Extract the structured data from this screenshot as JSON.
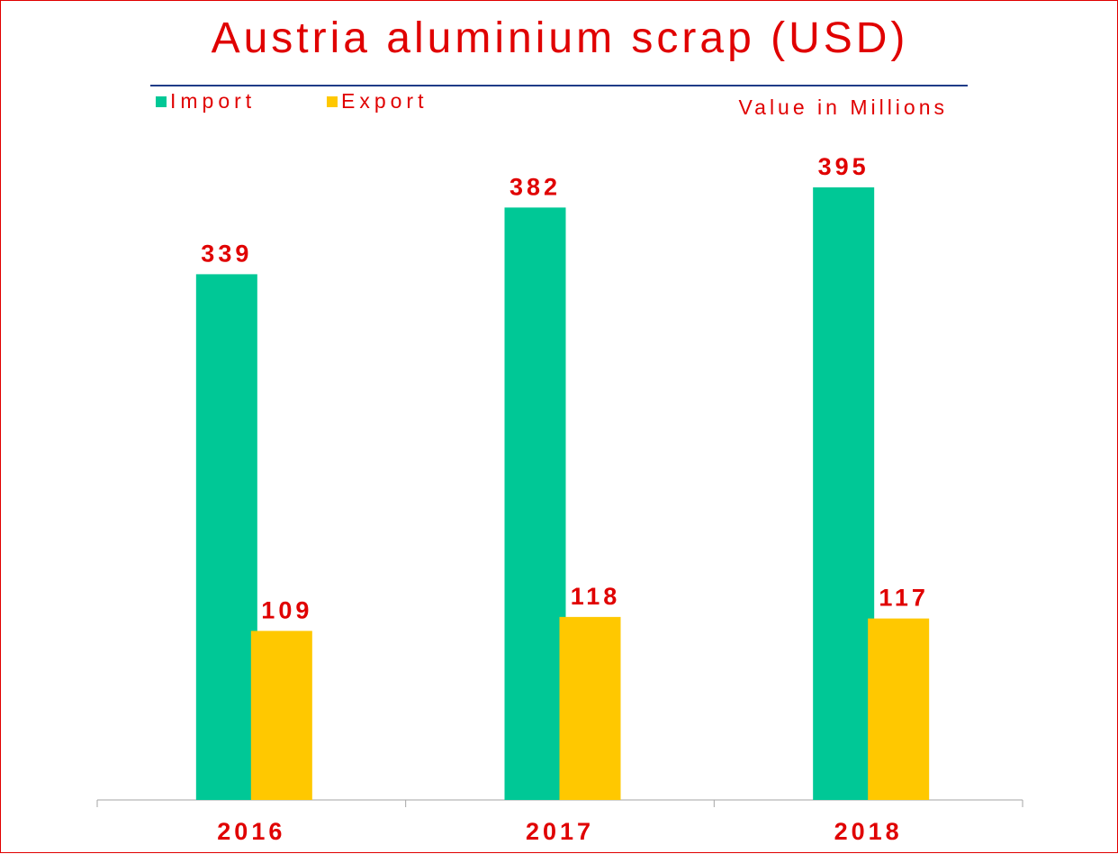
{
  "chart_data": {
    "type": "bar",
    "title": "Austria aluminium scrap (USD)",
    "unit_note": "Value in Millions",
    "categories": [
      "2016",
      "2017",
      "2018"
    ],
    "series": [
      {
        "name": "Import",
        "color": "#00c896",
        "values": [
          339,
          382,
          395
        ]
      },
      {
        "name": "Export",
        "color": "#ffc800",
        "values": [
          109,
          118,
          117
        ]
      }
    ],
    "ylim": [
      0,
      395
    ],
    "grid": false,
    "legend": "top-left"
  }
}
